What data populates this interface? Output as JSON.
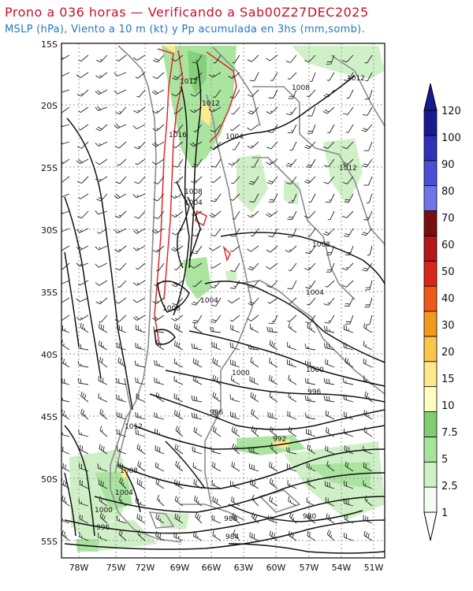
{
  "header": {
    "title": "Prono a 036 horas — Verificando a Sab00Z27DEC2025",
    "subtitle": "MSLP (hPa), Viento a 10 m (kt) y Pp acumulada en 3hs (mm,somb)."
  },
  "map": {
    "lat_labels": [
      "15S",
      "20S",
      "25S",
      "30S",
      "35S",
      "40S",
      "45S",
      "50S",
      "55S"
    ],
    "lon_labels": [
      "78W",
      "75W",
      "72W",
      "69W",
      "66W",
      "63W",
      "60W",
      "57W",
      "54W",
      "51W"
    ],
    "isobar_labels": [
      "1012",
      "1008",
      "1012",
      "1012",
      "1016",
      "1004",
      "1012",
      "1008",
      "1004",
      "1008",
      "1004",
      "1004",
      "1008",
      "1000",
      "1000",
      "996",
      "996",
      "1012",
      "992",
      "1008",
      "1004",
      "1000",
      "996",
      "988",
      "980",
      "984"
    ]
  },
  "colorbar": {
    "labels": [
      "1",
      "2.5",
      "5",
      "7.5",
      "10",
      "15",
      "20",
      "30",
      "40",
      "50",
      "60",
      "70",
      "80",
      "90",
      "100",
      "120"
    ],
    "colors": [
      "#f3fbf2",
      "#cdf0c4",
      "#a6e49a",
      "#7fcf72",
      "#fffcc4",
      "#fde98a",
      "#fbc54a",
      "#f39a1c",
      "#ef5a1a",
      "#d8281a",
      "#b3181a",
      "#7a0f10",
      "#6f74e6",
      "#4b4fd4",
      "#2f32b8",
      "#171a90"
    ]
  }
}
